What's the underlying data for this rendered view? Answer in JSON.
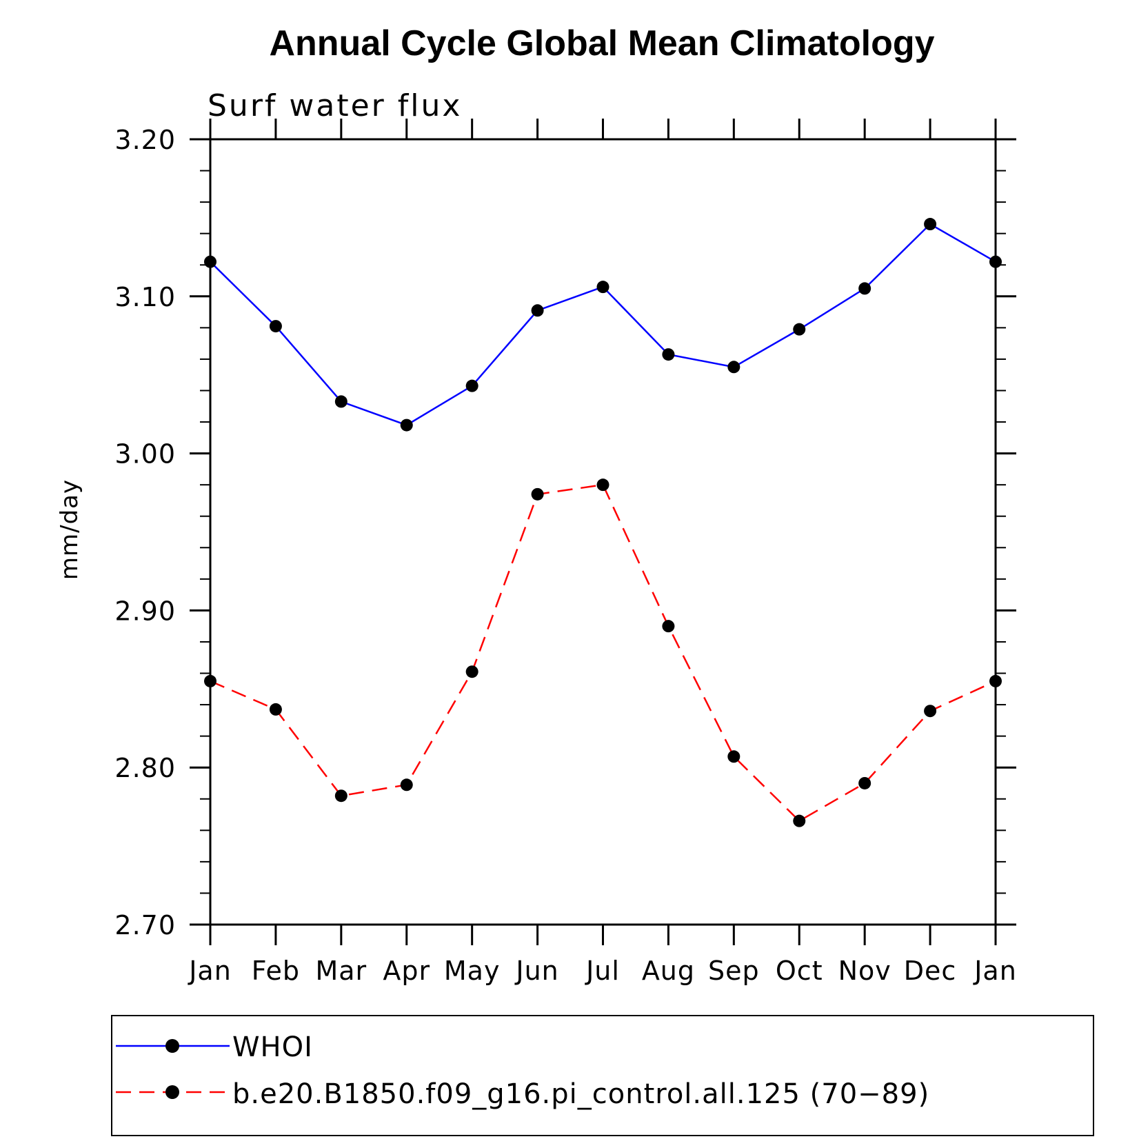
{
  "chart_data": {
    "type": "line",
    "title": "Annual Cycle Global Mean Climatology",
    "subtitle": "Surf water flux",
    "xlabel": "",
    "ylabel": "mm/day",
    "categories": [
      "Jan",
      "Feb",
      "Mar",
      "Apr",
      "May",
      "Jun",
      "Jul",
      "Aug",
      "Sep",
      "Oct",
      "Nov",
      "Dec",
      "Jan"
    ],
    "ylim": [
      2.7,
      3.2
    ],
    "yticks": [
      2.7,
      2.8,
      2.9,
      3.0,
      3.1,
      3.2
    ],
    "ytick_labels": [
      "2.70",
      "2.80",
      "2.90",
      "3.00",
      "3.10",
      "3.20"
    ],
    "y_minor_step": 0.02,
    "series": [
      {
        "name": "WHOI",
        "color": "#0000ff",
        "line_style": "solid",
        "marker": "dot",
        "values": [
          3.122,
          3.081,
          3.033,
          3.018,
          3.043,
          3.091,
          3.106,
          3.063,
          3.055,
          3.079,
          3.105,
          3.146,
          3.122
        ]
      },
      {
        "name": "b.e20.B1850.f09_g16.pi_control.all.125 (70-89)",
        "color": "#ff0000",
        "line_style": "dashed",
        "marker": "dot",
        "values": [
          2.855,
          2.837,
          2.782,
          2.789,
          2.861,
          2.974,
          2.98,
          2.89,
          2.807,
          2.766,
          2.79,
          2.836,
          2.855
        ]
      }
    ],
    "legend": {
      "placement": "bottom",
      "entries": [
        "WHOI",
        "b.e20.B1850.f09_g16.pi_control.all.125 (70−89)"
      ]
    },
    "grid": false
  }
}
